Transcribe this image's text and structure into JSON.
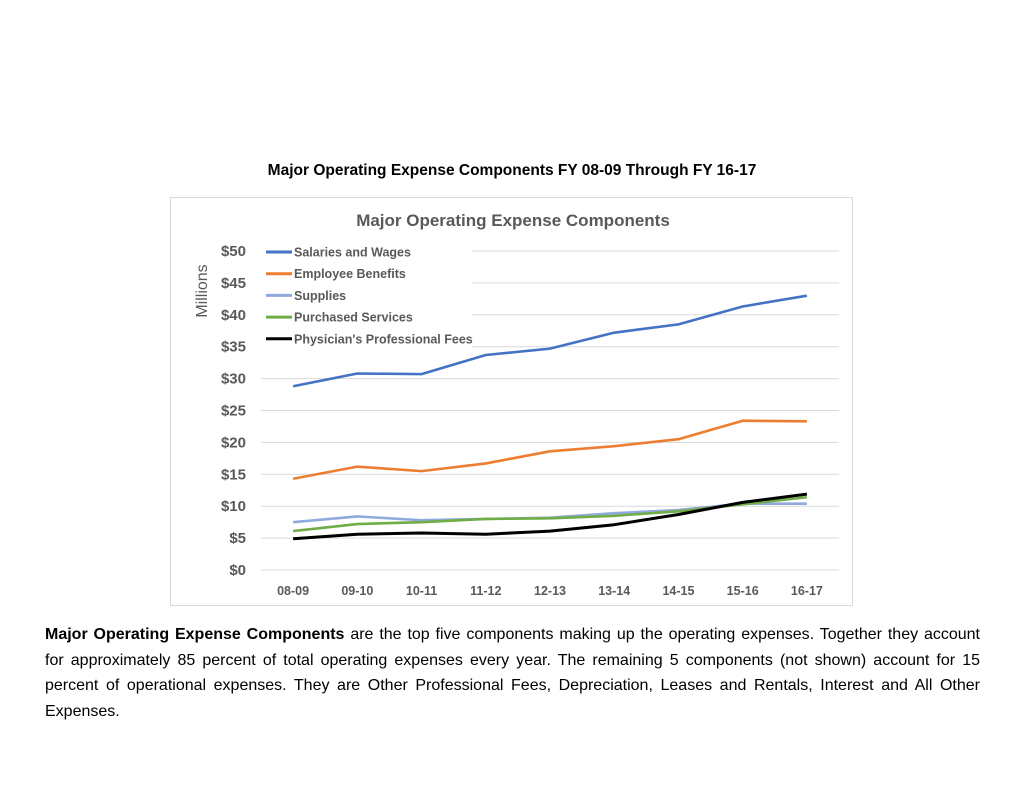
{
  "document": {
    "title": "Major Operating Expense Components FY 08-09 Through FY 16-17",
    "paragraph_bold": "Major Operating Expense Components",
    "paragraph_rest": " are the top five components making up the operating expenses. Together they account for approximately 85 percent of total operating expenses every year.  The remaining 5 components (not shown) account for 15 percent of operational expenses.  They are Other Professional Fees, Depreciation, Leases and Rentals, Interest and All Other Expenses."
  },
  "chart_data": {
    "type": "line",
    "title": "Major Operating Expense Components",
    "xlabel": "",
    "ylabel": "Millions",
    "categories": [
      "08-09",
      "09-10",
      "10-11",
      "11-12",
      "12-13",
      "13-14",
      "14-15",
      "15-16",
      "16-17"
    ],
    "ylim": [
      0,
      50
    ],
    "yticks": [
      0,
      5,
      10,
      15,
      20,
      25,
      30,
      35,
      40,
      45,
      50
    ],
    "ytick_labels": [
      "$0",
      "$5",
      "$10",
      "$15",
      "$20",
      "$25",
      "$30",
      "$35",
      "$40",
      "$45",
      "$50"
    ],
    "grid": true,
    "legend_position": "top-left",
    "series": [
      {
        "name": "Salaries and Wages",
        "color": "#4472c4",
        "values": [
          28.8,
          30.8,
          30.7,
          33.7,
          34.7,
          37.2,
          38.5,
          41.3,
          43.0
        ]
      },
      {
        "name": "Employee Benefits",
        "color": "#ed7d31",
        "values": [
          14.3,
          16.2,
          15.5,
          16.7,
          18.6,
          19.4,
          20.5,
          23.4,
          23.3
        ]
      },
      {
        "name": "Supplies",
        "color": "#8faadc",
        "values": [
          7.5,
          8.4,
          7.8,
          8.0,
          8.2,
          8.9,
          9.4,
          10.4,
          10.4
        ]
      },
      {
        "name": "Purchased Services",
        "color": "#70ad47",
        "values": [
          6.1,
          7.2,
          7.5,
          8.0,
          8.1,
          8.5,
          9.2,
          10.3,
          11.4
        ]
      },
      {
        "name": "Physician's Professional Fees",
        "color": "#000000",
        "values": [
          4.9,
          5.6,
          5.8,
          5.6,
          6.1,
          7.1,
          8.7,
          10.6,
          11.9
        ]
      }
    ]
  }
}
